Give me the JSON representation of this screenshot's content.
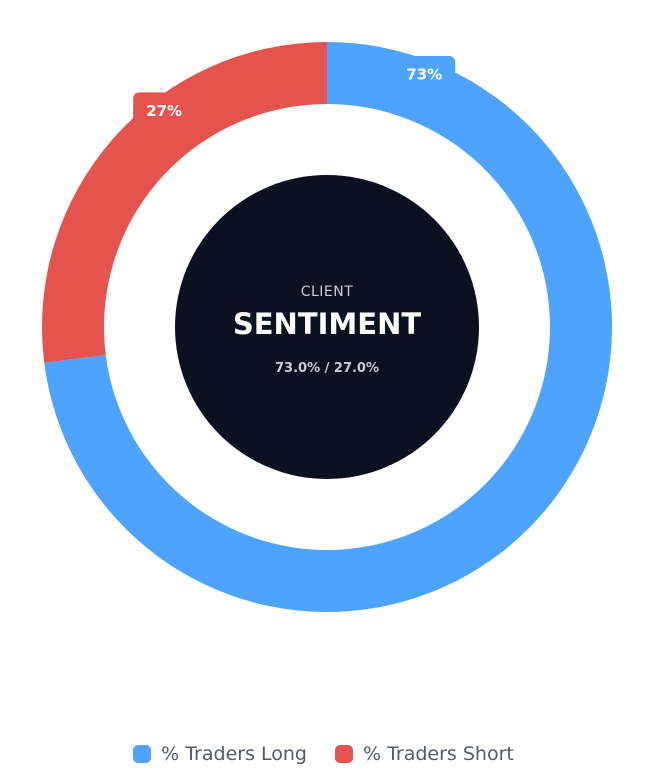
{
  "chart_data": {
    "type": "pie",
    "variant": "donut",
    "series": [
      {
        "name": "% Traders Long",
        "value": 73,
        "label": "73%",
        "color": "#4da3fd"
      },
      {
        "name": "% Traders Short",
        "value": 27,
        "label": "27%",
        "color": "#e5534f"
      }
    ],
    "legend_position": "bottom",
    "center": {
      "title_small": "CLIENT",
      "title_big": "SENTIMENT",
      "ratio": "73.0% / 27.0%",
      "background": "#0b1121"
    }
  }
}
